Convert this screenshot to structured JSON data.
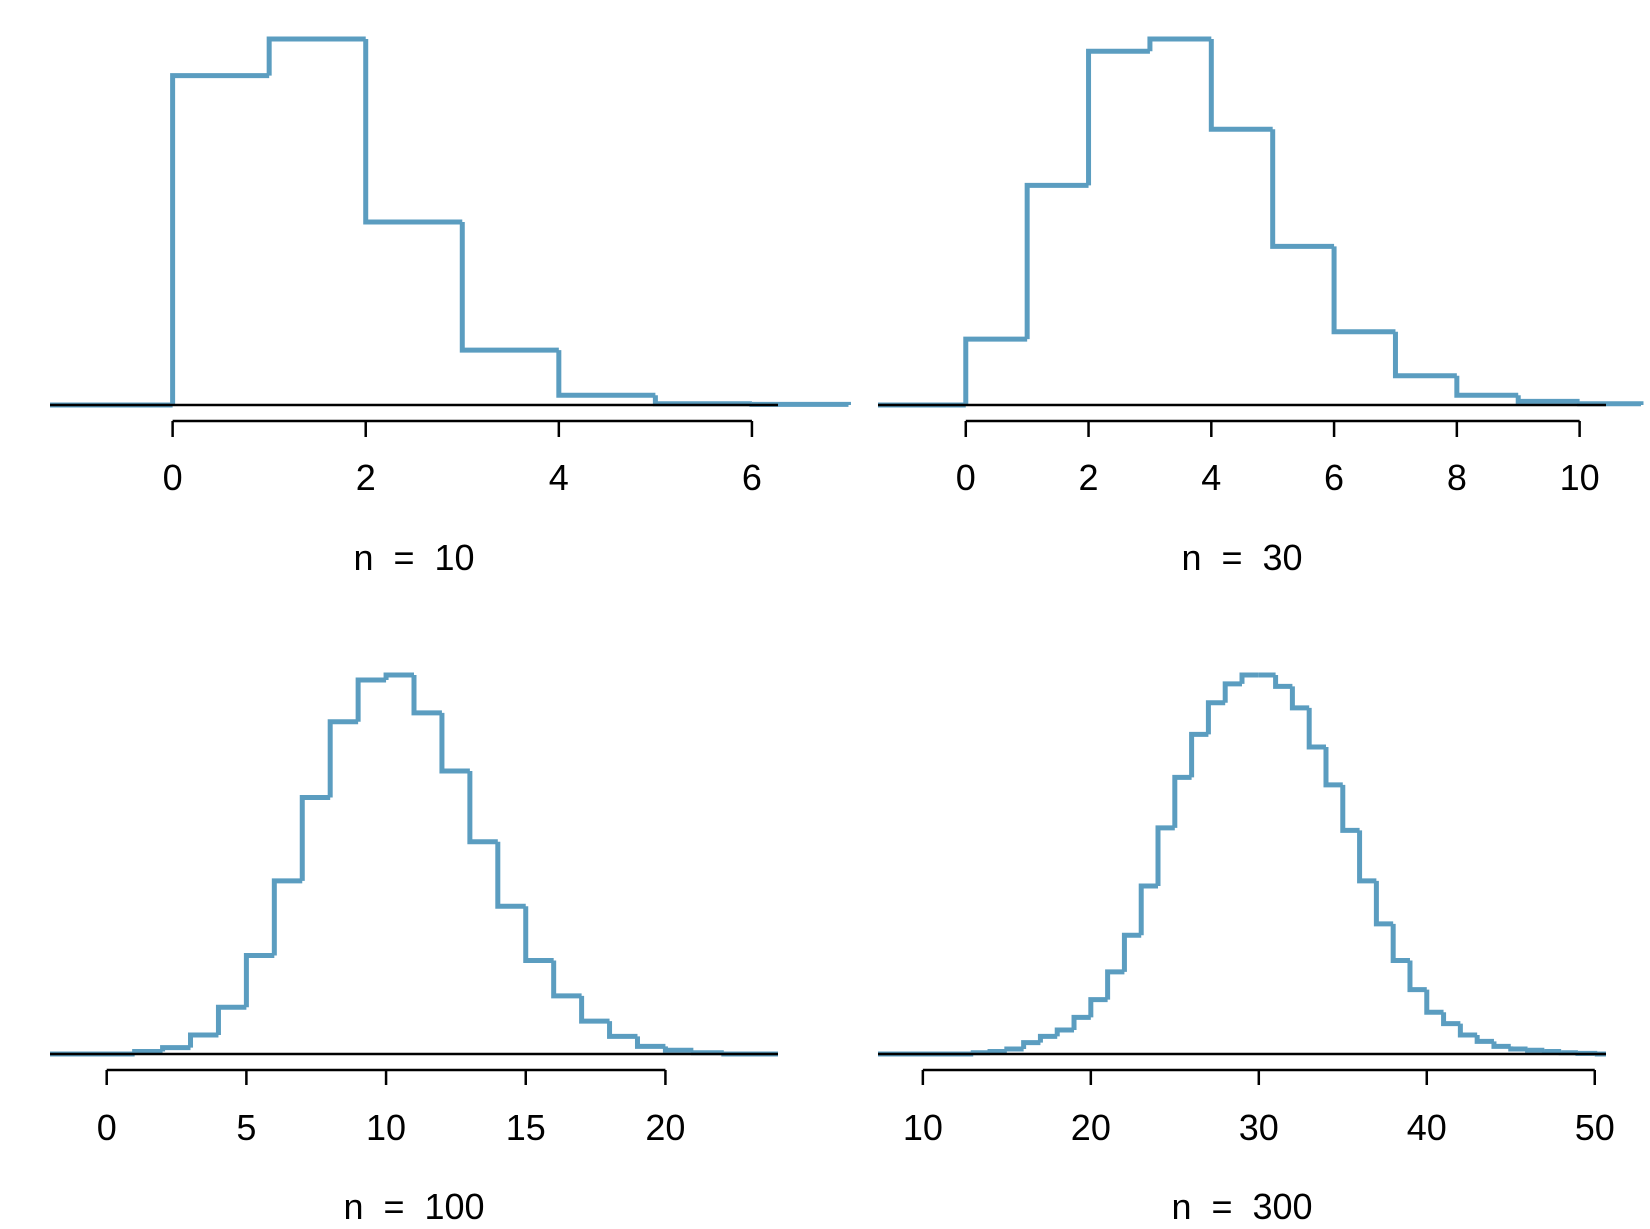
{
  "chart_data": [
    {
      "type": "histogram",
      "xlabel": "n  =  10",
      "xlim": [
        -1.27,
        6.27
      ],
      "axis_ticks": [
        0,
        2,
        4,
        6
      ],
      "ylim": [
        0,
        0.3
      ],
      "bin_edges": [
        0,
        1,
        2,
        3,
        4,
        5,
        6,
        7
      ],
      "values": [
        0.27,
        0.3,
        0.15,
        0.045,
        0.008,
        0.001,
        0.0005
      ],
      "legend": "none",
      "grid": false
    },
    {
      "type": "histogram",
      "xlabel": "n  =  30",
      "xlim": [
        -1.43,
        10.43
      ],
      "axis_ticks": [
        0,
        2,
        4,
        6,
        8,
        10
      ],
      "ylim": [
        0,
        0.3
      ],
      "bin_edges": [
        0,
        1,
        2,
        3,
        4,
        5,
        6,
        7,
        8,
        9,
        10,
        11
      ],
      "values": [
        0.054,
        0.18,
        0.29,
        0.3,
        0.226,
        0.13,
        0.06,
        0.024,
        0.008,
        0.003,
        0.001
      ],
      "legend": "none",
      "grid": false
    },
    {
      "type": "histogram",
      "xlabel": "n  =  100",
      "xlim": [
        -2.03,
        24.03
      ],
      "axis_ticks": [
        0,
        5,
        10,
        15,
        20
      ],
      "ylim": [
        0,
        0.3
      ],
      "bin_edges": [
        1,
        2,
        3,
        4,
        5,
        6,
        7,
        8,
        9,
        10,
        11,
        12,
        13,
        14,
        15,
        16,
        17,
        18,
        19,
        20,
        21,
        22
      ],
      "values": [
        0.002,
        0.005,
        0.015,
        0.037,
        0.078,
        0.137,
        0.203,
        0.263,
        0.296,
        0.3,
        0.27,
        0.224,
        0.168,
        0.117,
        0.074,
        0.046,
        0.026,
        0.014,
        0.006,
        0.003,
        0.001
      ],
      "legend": "none",
      "grid": false
    },
    {
      "type": "histogram",
      "xlabel": "n  =  300",
      "xlim": [
        7.33,
        50.67
      ],
      "axis_ticks": [
        10,
        20,
        30,
        40,
        50
      ],
      "ylim": [
        0,
        0.3
      ],
      "bin_edges": [
        13,
        14,
        15,
        16,
        17,
        18,
        19,
        20,
        21,
        22,
        23,
        24,
        25,
        26,
        27,
        28,
        29,
        30,
        31,
        32,
        33,
        34,
        35,
        36,
        37,
        38,
        39,
        40,
        41,
        42,
        43,
        44,
        45,
        46,
        47,
        48,
        49,
        50
      ],
      "values": [
        0.001,
        0.002,
        0.004,
        0.009,
        0.014,
        0.019,
        0.029,
        0.043,
        0.065,
        0.094,
        0.133,
        0.179,
        0.219,
        0.253,
        0.278,
        0.293,
        0.3,
        0.3,
        0.291,
        0.274,
        0.243,
        0.213,
        0.177,
        0.137,
        0.103,
        0.074,
        0.051,
        0.033,
        0.024,
        0.015,
        0.01,
        0.006,
        0.004,
        0.003,
        0.002,
        0.001,
        0.0005
      ],
      "legend": "none",
      "grid": false
    }
  ],
  "colors": {
    "histogram_line": "#5b9dc0",
    "axis": "#000000"
  }
}
